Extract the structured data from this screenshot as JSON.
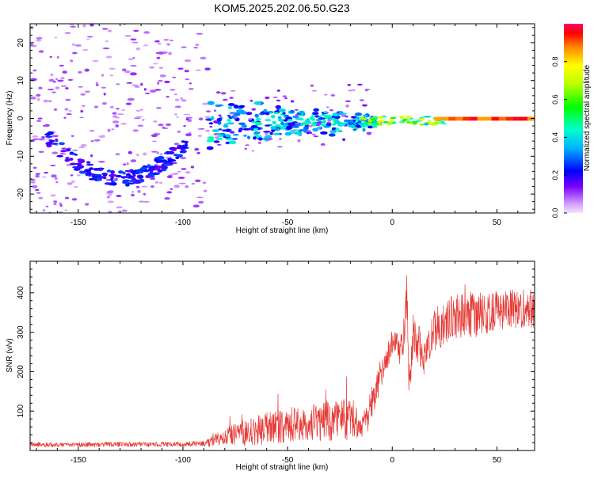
{
  "title": "KOM5.2025.202.06.50.G23",
  "colors": {
    "snr_line": "#e53935",
    "frame": "#000000",
    "speckle": "#c89af0"
  },
  "chart_data": [
    {
      "type": "heatmap",
      "xlabel": "Height of straight line (km)",
      "ylabel": "Frequency (Hz)",
      "xlim": [
        -173,
        68
      ],
      "ylim": [
        -25,
        25
      ],
      "xticks": [
        -150,
        -100,
        -50,
        0,
        50
      ],
      "yticks": [
        -20,
        -10,
        0,
        10,
        20
      ],
      "colorbar": {
        "label": "Normalized spectral amplitude",
        "range": [
          0.0,
          1.0
        ],
        "ticks": [
          0.0,
          0.2,
          0.4,
          0.6,
          0.8
        ],
        "colormap": "rainbow (magenta-blue-cyan-green-yellow-red)"
      },
      "features": [
        {
          "x_range": [
            -173,
            -90
          ],
          "freq_range": [
            -25,
            25
          ],
          "level": "low (0.05-0.15), sparse speckle"
        },
        {
          "x_range": [
            -165,
            -100
          ],
          "freq_range": [
            -17,
            -4
          ],
          "level": "0.15-0.3, arc descending then rising"
        },
        {
          "x_range": [
            -88,
            -10
          ],
          "freq_range": [
            -7,
            6
          ],
          "level": "0.2-0.5, cluster near 0 Hz"
        },
        {
          "x_range": [
            -15,
            25
          ],
          "freq_range": [
            -2,
            1
          ],
          "level": "0.4-0.8, near 0 Hz"
        },
        {
          "x_range": [
            20,
            68
          ],
          "freq_range": [
            -0.7,
            0.5
          ],
          "level": "0.8-1.0, narrow line at 0 Hz"
        }
      ]
    },
    {
      "type": "line",
      "xlabel": "Height of straight line (km)",
      "ylabel": "SNR (v/v)",
      "xlim": [
        -173,
        68
      ],
      "ylim": [
        0,
        480
      ],
      "xticks": [
        -150,
        -100,
        -50,
        0,
        50
      ],
      "yticks": [
        100,
        200,
        300,
        400
      ],
      "series": [
        {
          "x": [
            -173,
            -150,
            -120,
            -100,
            -90,
            -85,
            -80,
            -70,
            -60,
            -50,
            -40,
            -30,
            -20,
            -15,
            -12,
            -10,
            -5,
            0,
            5,
            7,
            8,
            10,
            15,
            20,
            25,
            30,
            40,
            50,
            60,
            68
          ],
          "mean": [
            15,
            15,
            16,
            16,
            18,
            25,
            35,
            45,
            55,
            65,
            70,
            75,
            85,
            60,
            75,
            130,
            200,
            270,
            250,
            420,
            150,
            300,
            240,
            300,
            330,
            340,
            345,
            355,
            360,
            360
          ],
          "spread": [
            6,
            6,
            6,
            6,
            8,
            15,
            20,
            35,
            40,
            45,
            45,
            50,
            60,
            25,
            40,
            50,
            40,
            40,
            45,
            60,
            60,
            50,
            50,
            55,
            60,
            55,
            60,
            50,
            50,
            50
          ]
        }
      ]
    }
  ]
}
